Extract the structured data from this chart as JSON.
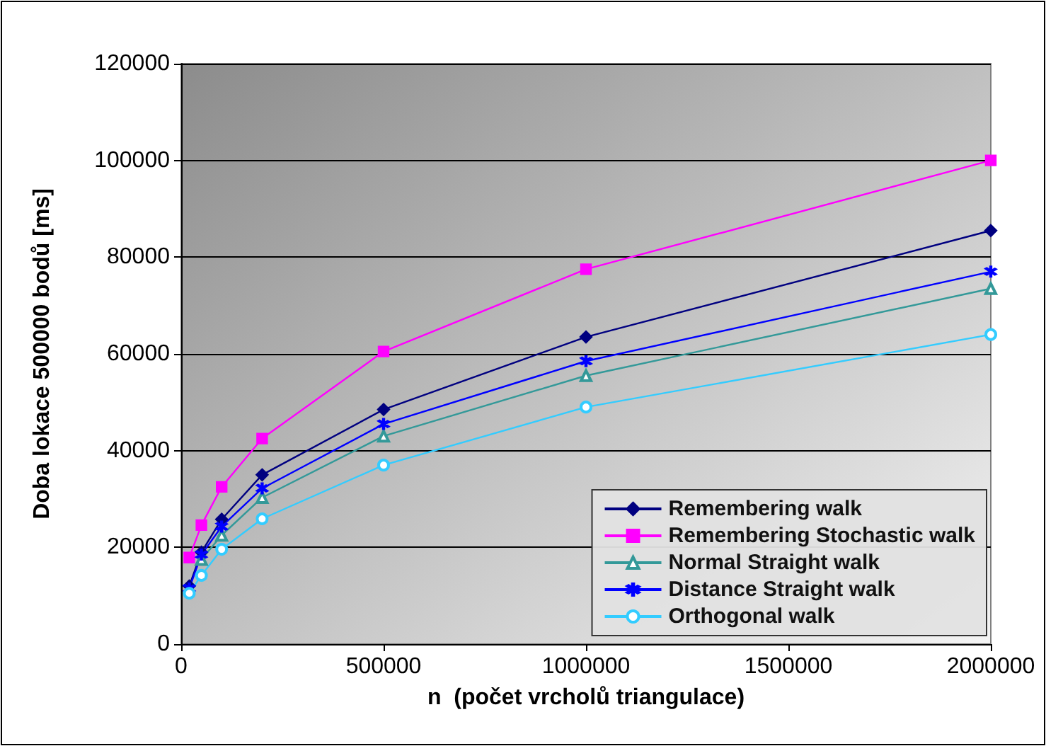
{
  "chart_data": {
    "type": "line",
    "xlabel": "n  (počet vrcholů triangulace)",
    "ylabel": "Doba lokace 500000 bodů [ms]",
    "x": [
      20000,
      50000,
      100000,
      200000,
      500000,
      1000000,
      2000000
    ],
    "series": [
      {
        "name": "Remembering walk",
        "color": "#000080",
        "marker": "diamond",
        "values": [
          12000,
          19000,
          25800,
          35000,
          48500,
          63500,
          85500
        ]
      },
      {
        "name": "Remembering Stochastic walk",
        "color": "#ff00ff",
        "marker": "square",
        "values": [
          17900,
          24600,
          32500,
          42500,
          60500,
          77500,
          100000
        ]
      },
      {
        "name": "Normal Straight walk",
        "color": "#339999",
        "marker": "triangle",
        "values": [
          null,
          17500,
          22500,
          30300,
          43000,
          55500,
          73500
        ]
      },
      {
        "name": "Distance Straight walk",
        "color": "#0000ff",
        "marker": "cross",
        "values": [
          11500,
          18500,
          24300,
          32200,
          45500,
          58500,
          77000
        ]
      },
      {
        "name": "Orthogonal walk",
        "color": "#33ccff",
        "marker": "circle",
        "values": [
          10500,
          14200,
          19600,
          25900,
          37000,
          49000,
          64000
        ]
      }
    ],
    "xlim": [
      0,
      2000000
    ],
    "xticks": [
      0,
      500000,
      1000000,
      1500000,
      2000000
    ],
    "ylim": [
      0,
      120000
    ],
    "yticks": [
      0,
      20000,
      40000,
      60000,
      80000,
      100000,
      120000
    ],
    "grid": "y",
    "legend": "bottom right"
  }
}
